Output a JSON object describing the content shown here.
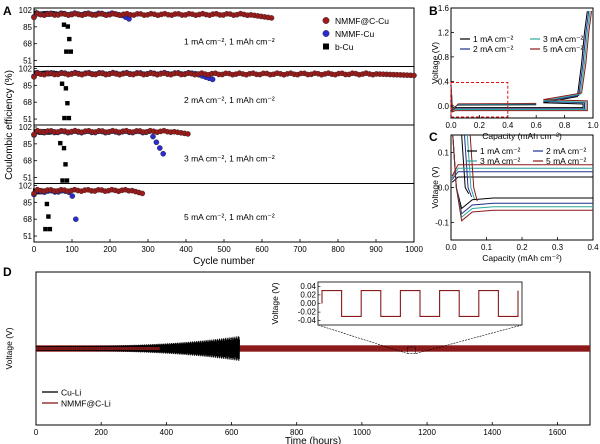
{
  "colors": {
    "red": "#9b1b1b",
    "blue": "#2b2bd0",
    "black": "#000000",
    "teal": "#2aa89a",
    "navy": "#1f2f8f",
    "dark_red": "#8b1a1a",
    "dash_red": "#e01010"
  },
  "chart_data": [
    {
      "id": "A",
      "type": "scatter",
      "panel_letter": "A",
      "xlabel": "Cycle number",
      "ylabel": "Coulombic efficiency (%)",
      "xlim": [
        0,
        1000
      ],
      "x_ticks": [
        "0",
        "100",
        "200",
        "300",
        "400",
        "500",
        "600",
        "700",
        "800",
        "900",
        "1000"
      ],
      "y_ticks": [
        "102",
        "85",
        "68",
        "51"
      ],
      "legend": [
        "NMMF@C-Cu",
        "NMMF-Cu",
        "b-Cu"
      ],
      "subpanels": [
        {
          "condition": "1 mA cm⁻²,    1 mAh cm⁻²",
          "ylim": [
            45,
            104
          ],
          "series": [
            {
              "name": "NMMF@C-Cu",
              "x_range": [
                0,
                625
              ],
              "level": 97.5,
              "end_drop": 94
            },
            {
              "name": "NMMF-Cu",
              "x_range": [
                0,
                250
              ],
              "level": 98,
              "end_drop": 93
            },
            {
              "name": "b-Cu",
              "x_range": [
                0,
                85
              ],
              "level": 98,
              "end_drop": 60
            }
          ]
        },
        {
          "condition": "2 mA cm⁻²,    1 mAh cm⁻²",
          "ylim": [
            45,
            104
          ],
          "series": [
            {
              "name": "NMMF@C-Cu",
              "x_range": [
                0,
                1000
              ],
              "level": 96.5,
              "end_drop": 95
            },
            {
              "name": "NMMF-Cu",
              "x_range": [
                0,
                470
              ],
              "level": 97,
              "end_drop": 91
            },
            {
              "name": "b-Cu",
              "x_range": [
                0,
                80
              ],
              "level": 97,
              "end_drop": 52
            }
          ]
        },
        {
          "condition": "3 mA cm⁻²,    1 mAh cm⁻²",
          "ylim": [
            45,
            104
          ],
          "series": [
            {
              "name": "NMMF@C-Cu",
              "x_range": [
                0,
                405
              ],
              "level": 97.5,
              "end_drop": 95
            },
            {
              "name": "NMMF-Cu",
              "x_range": [
                0,
                340
              ],
              "level": 97,
              "end_drop": 75
            },
            {
              "name": "b-Cu",
              "x_range": [
                0,
                75
              ],
              "level": 97,
              "end_drop": 48
            }
          ]
        },
        {
          "condition": "5 mA cm⁻²,    1 mAh cm⁻²",
          "ylim": [
            45,
            104
          ],
          "series": [
            {
              "name": "NMMF@C-Cu",
              "x_range": [
                0,
                285
              ],
              "level": 97,
              "end_drop": 94
            },
            {
              "name": "NMMF-Cu",
              "x_range": [
                0,
                110
              ],
              "level": 96,
              "end_drop": 68
            },
            {
              "name": "b-Cu",
              "x_range": [
                0,
                30
              ],
              "level": 96,
              "end_drop": 58
            }
          ]
        }
      ]
    },
    {
      "id": "B",
      "type": "line",
      "panel_letter": "B",
      "xlabel": "Capacity (mAh cm⁻²)",
      "ylabel": "Voltage (V)",
      "xlim": [
        0,
        1.0
      ],
      "ylim": [
        -0.2,
        1.6
      ],
      "x_ticks": [
        "0.0",
        "0.2",
        "0.4",
        "0.6",
        "0.8",
        "1.0"
      ],
      "y_ticks": [
        "0.0",
        "0.4",
        "0.8",
        "1.2",
        "1.6"
      ],
      "legend": [
        "1 mA cm⁻²",
        "2 mA cm⁻²",
        "3 mA cm⁻²",
        "5 mA cm⁻²"
      ],
      "series": [
        {
          "name": "1 mA cm⁻²",
          "plate": -0.03,
          "strip": 0.03,
          "end": 0.93
        },
        {
          "name": "2 mA cm⁻²",
          "plate": -0.05,
          "strip": 0.05,
          "end": 0.94
        },
        {
          "name": "3 mA cm⁻²",
          "plate": -0.06,
          "strip": 0.06,
          "end": 0.95
        },
        {
          "name": "5 mA cm⁻²",
          "plate": -0.08,
          "strip": 0.08,
          "end": 0.96
        }
      ]
    },
    {
      "id": "C",
      "type": "line",
      "panel_letter": "C",
      "xlabel": "Capacity (mAh cm⁻²)",
      "ylabel": "Voltage (V)",
      "xlim": [
        0,
        0.4
      ],
      "ylim": [
        -0.15,
        0.15
      ],
      "x_ticks": [
        "0.0",
        "0.1",
        "0.2",
        "0.3",
        "0.4"
      ],
      "y_ticks": [
        "0.1",
        "0.0",
        "-0.1"
      ],
      "legend": [
        "1 mA cm⁻²",
        "2 mA cm⁻²",
        "3 mA cm⁻²",
        "5 mA cm⁻²"
      ],
      "series": [
        {
          "name": "1 mA cm⁻²",
          "plate": -0.03,
          "strip": 0.03
        },
        {
          "name": "2 mA cm⁻²",
          "plate": -0.045,
          "strip": 0.045
        },
        {
          "name": "3 mA cm⁻²",
          "plate": -0.055,
          "strip": 0.055
        },
        {
          "name": "5 mA cm⁻²",
          "plate": -0.065,
          "strip": 0.065
        }
      ]
    },
    {
      "id": "D",
      "type": "line",
      "panel_letter": "D",
      "xlabel": "Time (hours)",
      "ylabel": "Voltage (V)",
      "xlim": [
        0,
        1700
      ],
      "ylim": [
        -0.6,
        0.6
      ],
      "x_ticks": [
        "0",
        "200",
        "400",
        "600",
        "800",
        "1000",
        "1200",
        "1400",
        "1600"
      ],
      "legend": [
        "Cu-Li",
        "NMMF@C-Li"
      ],
      "series": [
        {
          "name": "Cu-Li",
          "x_range": [
            0,
            625
          ],
          "amplitude_start": 0.02,
          "amplitude_end": 0.1
        },
        {
          "name": "NMMF@C-Li",
          "x_range": [
            0,
            1700
          ],
          "amplitude": 0.025
        }
      ],
      "inset": {
        "ylabel": "Voltage (V)",
        "y_ticks": [
          "0.04",
          "0.02",
          "0.00",
          "-0.02",
          "-0.04"
        ],
        "ylim": [
          -0.05,
          0.05
        ],
        "amplitude": 0.03,
        "cycles": 5
      }
    }
  ]
}
